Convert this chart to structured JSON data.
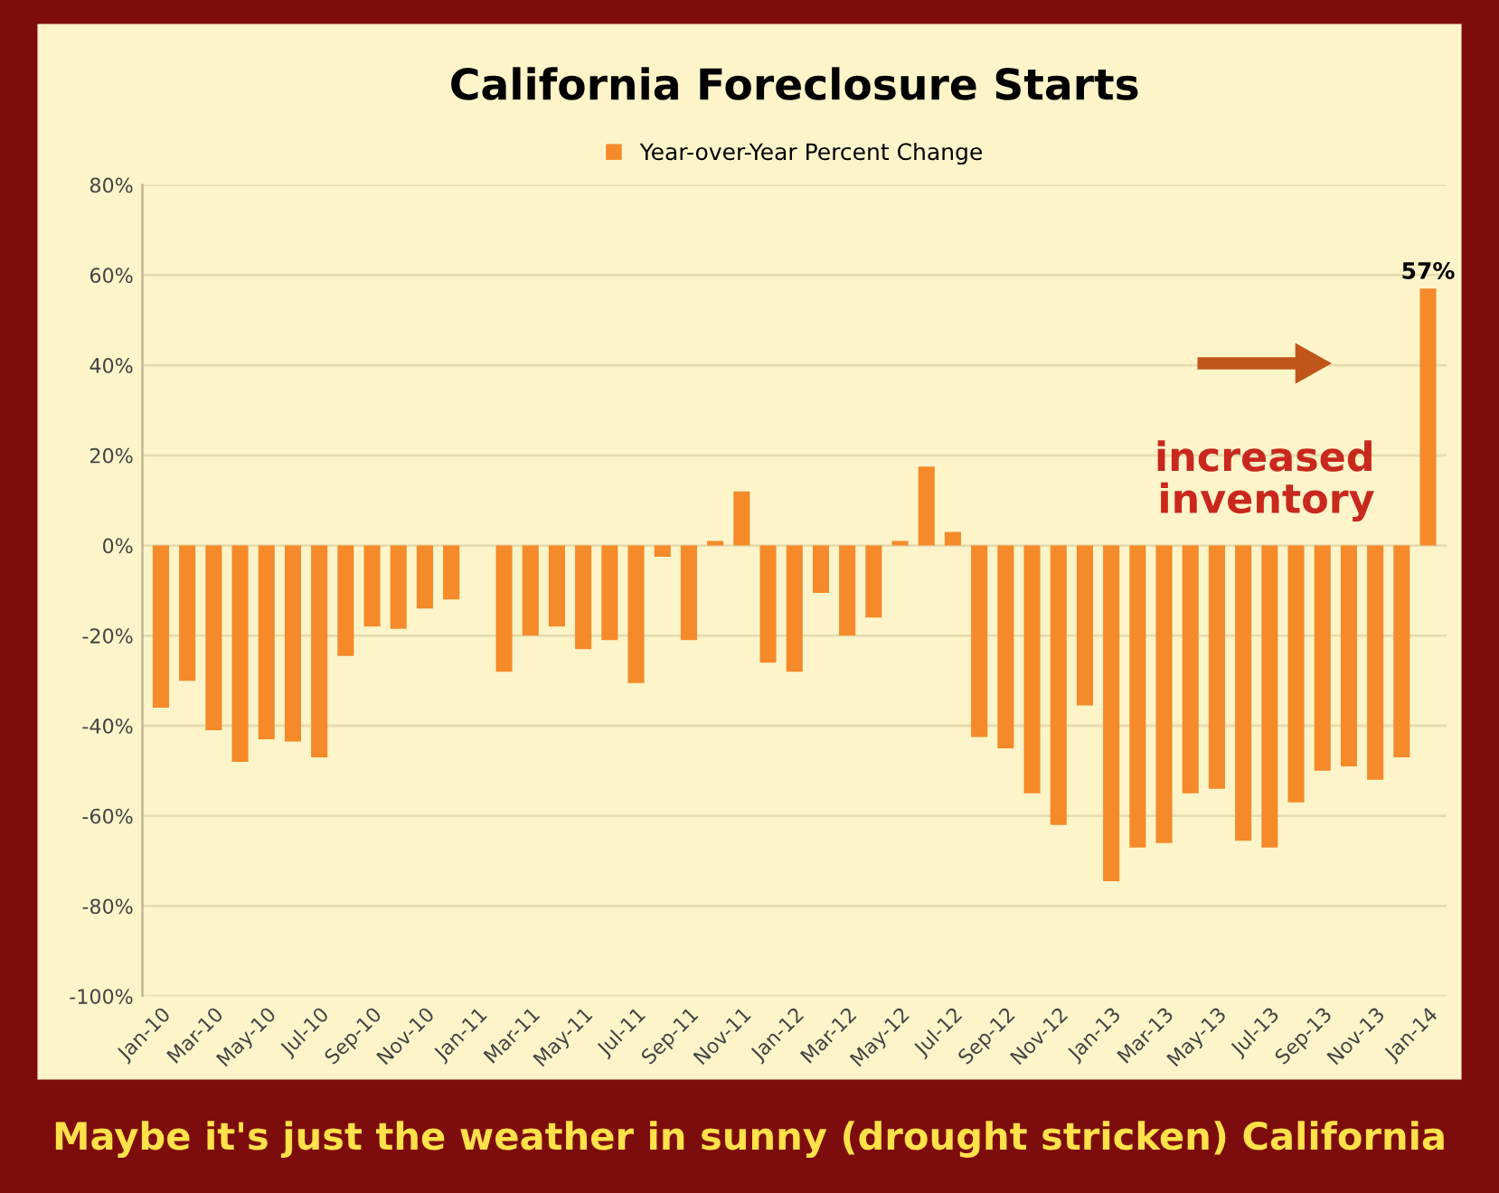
{
  "chart_data": {
    "type": "bar",
    "title": "California Foreclosure Starts",
    "categories": [
      "Jan-10",
      null,
      "Mar-10",
      null,
      "May-10",
      null,
      "Jul-10",
      null,
      "Sep-10",
      null,
      "Nov-10",
      null,
      "Jan-11",
      null,
      "Mar-11",
      null,
      "May-11",
      null,
      "Jul-11",
      null,
      "Sep-11",
      null,
      "Nov-11",
      null,
      "Jan-12",
      null,
      "Mar-12",
      null,
      "May-12",
      null,
      "Jul-12",
      null,
      "Sep-12",
      null,
      "Nov-12",
      null,
      "Jan-13",
      null,
      "Mar-13",
      null,
      "May-13",
      null,
      "Jul-13",
      null,
      "Sep-13",
      null,
      "Nov-13",
      null,
      "Jan-14"
    ],
    "series": [
      {
        "name": "Year-over-Year Percent Change",
        "color": "#f58a2a",
        "values": [
          -36,
          -30,
          -41,
          -48,
          -43,
          -43.5,
          -47,
          -24.5,
          -18,
          -18.5,
          -14,
          -12,
          null,
          -28,
          -20,
          -18,
          -23,
          -21,
          -30.5,
          -2.5,
          -21,
          1,
          12,
          -26,
          -28,
          -10.5,
          -20,
          -16,
          1,
          17.5,
          3,
          -42.5,
          -45,
          -55,
          -62,
          -35.5,
          -74.5,
          -67,
          -66,
          -55,
          -54,
          -65.5,
          -67,
          -57,
          -50,
          -49,
          -52,
          -47,
          57
        ],
        "value_labels": [
          null,
          null,
          null,
          null,
          null,
          null,
          null,
          null,
          null,
          null,
          null,
          null,
          null,
          null,
          null,
          null,
          null,
          null,
          null,
          null,
          null,
          null,
          null,
          null,
          null,
          null,
          null,
          null,
          null,
          null,
          null,
          null,
          null,
          null,
          null,
          null,
          null,
          null,
          null,
          null,
          null,
          null,
          null,
          null,
          null,
          null,
          null,
          null,
          "57%"
        ]
      }
    ],
    "ylim": [
      -100,
      80
    ],
    "yticks": [
      {
        "value": -100,
        "label": "-100%"
      },
      {
        "value": -80,
        "label": "-80%"
      },
      {
        "value": -60,
        "label": "-60%"
      },
      {
        "value": -40,
        "label": "-40%"
      },
      {
        "value": -20,
        "label": "-20%"
      },
      {
        "value": 0,
        "label": "0%"
      },
      {
        "value": 20,
        "label": "20%"
      },
      {
        "value": 40,
        "label": "40%"
      },
      {
        "value": 60,
        "label": "60%"
      },
      {
        "value": 80,
        "label": "80%"
      }
    ],
    "grid": "y",
    "legend": "top",
    "annotations": [
      "increased\ninventory",
      "Maybe it's just the weather in sunny (drought stricken) California"
    ]
  }
}
